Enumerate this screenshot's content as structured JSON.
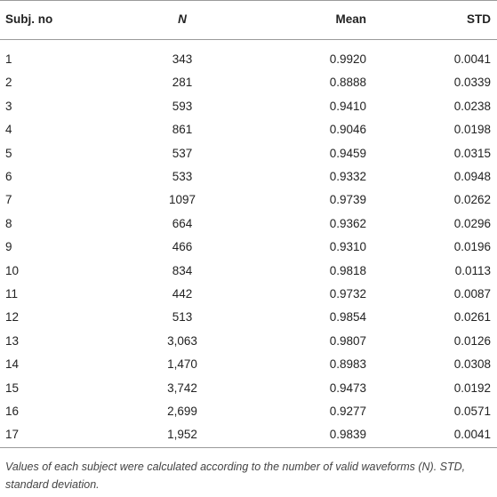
{
  "table": {
    "header": [
      "Subj. no",
      "N",
      "Mean",
      "STD"
    ],
    "rows": [
      [
        "1",
        "343",
        "0.9920",
        "0.0041"
      ],
      [
        "2",
        "281",
        "0.8888",
        "0.0339"
      ],
      [
        "3",
        "593",
        "0.9410",
        "0.0238"
      ],
      [
        "4",
        "861",
        "0.9046",
        "0.0198"
      ],
      [
        "5",
        "537",
        "0.9459",
        "0.0315"
      ],
      [
        "6",
        "533",
        "0.9332",
        "0.0948"
      ],
      [
        "7",
        "1097",
        "0.9739",
        "0.0262"
      ],
      [
        "8",
        "664",
        "0.9362",
        "0.0296"
      ],
      [
        "9",
        "466",
        "0.9310",
        "0.0196"
      ],
      [
        "10",
        "834",
        "0.9818",
        "0.0113"
      ],
      [
        "11",
        "442",
        "0.9732",
        "0.0087"
      ],
      [
        "12",
        "513",
        "0.9854",
        "0.0261"
      ],
      [
        "13",
        "3,063",
        "0.9807",
        "0.0126"
      ],
      [
        "14",
        "1,470",
        "0.8983",
        "0.0308"
      ],
      [
        "15",
        "3,742",
        "0.9473",
        "0.0192"
      ],
      [
        "16",
        "2,699",
        "0.9277",
        "0.0571"
      ],
      [
        "17",
        "1,952",
        "0.9839",
        "0.0041"
      ]
    ],
    "footnote": "Values of each subject were calculated according to the number of valid waveforms (N). STD, standard deviation."
  }
}
